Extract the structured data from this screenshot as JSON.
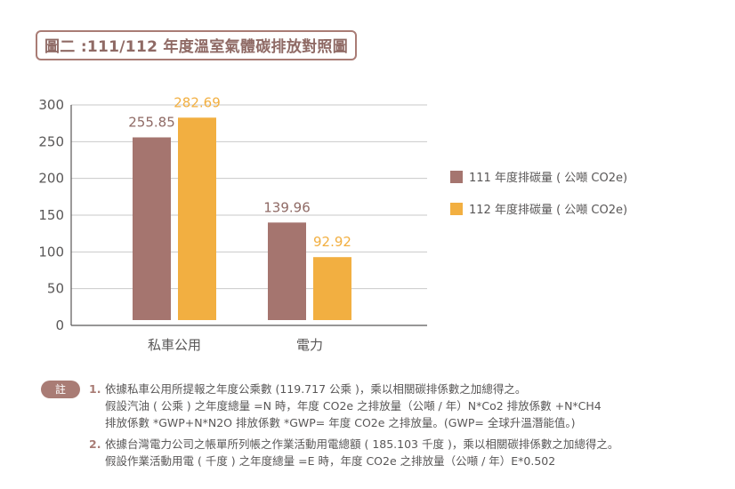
{
  "title": "圖二 :111/112 年度溫室氣體碳排放對照圖",
  "chart_data": {
    "type": "bar",
    "categories": [
      "私車公用",
      "電力"
    ],
    "series": [
      {
        "name": "111 年度排碳量 ( 公噸 CO2e)",
        "values": [
          255.85,
          139.96
        ],
        "color": "#a5756f"
      },
      {
        "name": "112 年度排碳量 ( 公噸 CO2e)",
        "values": [
          282.69,
          92.92
        ],
        "color": "#f2af41"
      }
    ],
    "value_labels": [
      [
        "255.85",
        "139.96"
      ],
      [
        "282.69",
        "92.92"
      ]
    ],
    "ylim": [
      0,
      300
    ],
    "yticks": [
      0,
      50,
      100,
      150,
      200,
      250,
      300
    ],
    "grid": true,
    "legend_position": "right"
  },
  "notes": {
    "badge": "註",
    "items": [
      {
        "num": "1.",
        "lines": [
          "依據私車公用所提報之年度公乘數 (119.717 公乘 )，乘以相關碳排係數之加總得之。",
          "假設汽油 ( 公乘 ) 之年度總量 =N 時，年度 CO2e 之排放量（公噸 / 年）N*Co2 排放係數 +N*CH4",
          "排放係數 *GWP+N*N2O 排放係數 *GWP= 年度 CO2e 之排放量。(GWP= 全球升溫潛能值。)"
        ]
      },
      {
        "num": "2.",
        "lines": [
          "依據台灣電力公司之帳單所列帳之作業活動用電總額 ( 185.103 千度 )，乘以相關碳排係數之加總得之。",
          "假設作業活動用電 ( 千度 ) 之年度總量 =E 時，年度 CO2e 之排放量（公噸 / 年）E*0.502"
        ]
      }
    ]
  }
}
